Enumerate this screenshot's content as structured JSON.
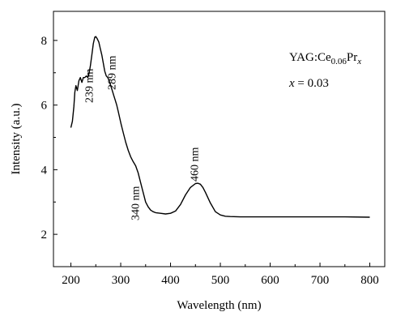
{
  "chart_data": {
    "type": "line",
    "title": "",
    "xlabel": "Wavelength (nm)",
    "ylabel": "Intensity (a.u.)",
    "xlim": [
      165,
      830
    ],
    "ylim": [
      1.0,
      8.9
    ],
    "xticks": [
      200,
      300,
      400,
      500,
      600,
      700,
      800
    ],
    "yticks": [
      2,
      4,
      6,
      8
    ],
    "grid": false,
    "legend": {
      "placement": "top-right",
      "formula_prefix": "YAG:Ce",
      "formula_sub": "0.06",
      "formula_mid": "Pr",
      "formula_var": "x",
      "x_equation_var": "x",
      "x_equation_rest": " = 0.03"
    },
    "annotations": [
      {
        "text": "239 nm",
        "x": 239
      },
      {
        "text": "289 nm",
        "x": 289
      },
      {
        "text": "340 nm",
        "x": 340
      },
      {
        "text": "460 nm",
        "x": 460
      }
    ],
    "series": [
      {
        "color": "#000000",
        "x": [
          200,
          203,
          206,
          208,
          210,
          213,
          216,
          219,
          222,
          225,
          228,
          231,
          234,
          236,
          239,
          242,
          245,
          248,
          250,
          253,
          256,
          259,
          262,
          265,
          268,
          271,
          274,
          277,
          280,
          283,
          286,
          289,
          292,
          295,
          298,
          301,
          305,
          310,
          315,
          320,
          325,
          330,
          335,
          340,
          345,
          350,
          355,
          360,
          365,
          370,
          380,
          390,
          400,
          410,
          420,
          430,
          440,
          450,
          455,
          460,
          465,
          470,
          480,
          490,
          500,
          510,
          520,
          540,
          560,
          580,
          600,
          650,
          700,
          750,
          800
        ],
        "y": [
          5.3,
          5.5,
          5.95,
          6.4,
          6.6,
          6.45,
          6.75,
          6.85,
          6.7,
          6.85,
          6.85,
          6.9,
          6.85,
          6.95,
          7.2,
          7.55,
          7.9,
          8.1,
          8.12,
          8.05,
          7.95,
          7.75,
          7.55,
          7.3,
          7.05,
          6.9,
          6.85,
          6.75,
          6.6,
          6.45,
          6.3,
          6.15,
          6.0,
          5.8,
          5.6,
          5.4,
          5.15,
          4.85,
          4.6,
          4.4,
          4.25,
          4.12,
          3.9,
          3.6,
          3.3,
          3.0,
          2.85,
          2.75,
          2.7,
          2.67,
          2.65,
          2.63,
          2.65,
          2.72,
          2.92,
          3.22,
          3.45,
          3.57,
          3.58,
          3.55,
          3.45,
          3.3,
          2.97,
          2.7,
          2.6,
          2.56,
          2.55,
          2.54,
          2.54,
          2.54,
          2.54,
          2.54,
          2.54,
          2.54,
          2.53
        ]
      }
    ]
  }
}
